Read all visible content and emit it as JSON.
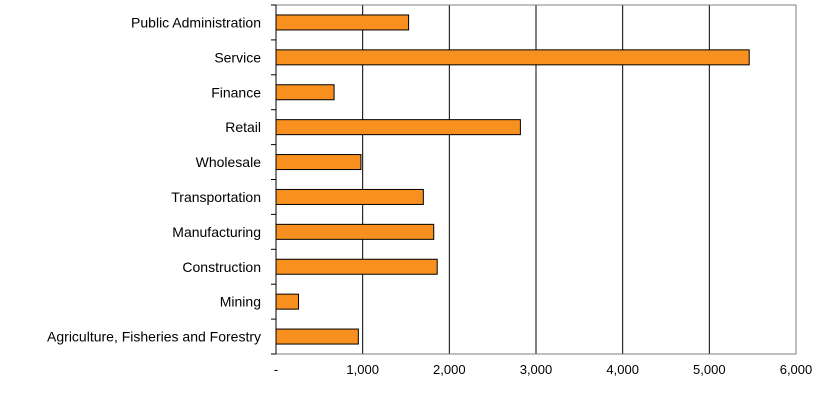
{
  "chart_data": {
    "type": "bar",
    "orientation": "horizontal",
    "categories": [
      "Public Administration",
      "Service",
      "Finance",
      "Retail",
      "Wholesale",
      "Transportation",
      "Manufacturing",
      "Construction",
      "Mining",
      "Agriculture, Fisheries and Forestry"
    ],
    "values": [
      1530,
      5460,
      670,
      2820,
      980,
      1700,
      1820,
      1860,
      260,
      950
    ],
    "xlim": [
      0,
      6000
    ],
    "xticks": [
      0,
      1000,
      2000,
      3000,
      4000,
      5000,
      6000
    ],
    "xtick_labels": [
      "-",
      "1,000",
      "2,000",
      "3,000",
      "4,000",
      "5,000",
      "6,000"
    ],
    "grid": "vertical",
    "bar_color": "#F7901E",
    "bar_edge_color": "#000000",
    "title": "",
    "xlabel": "",
    "ylabel": ""
  }
}
